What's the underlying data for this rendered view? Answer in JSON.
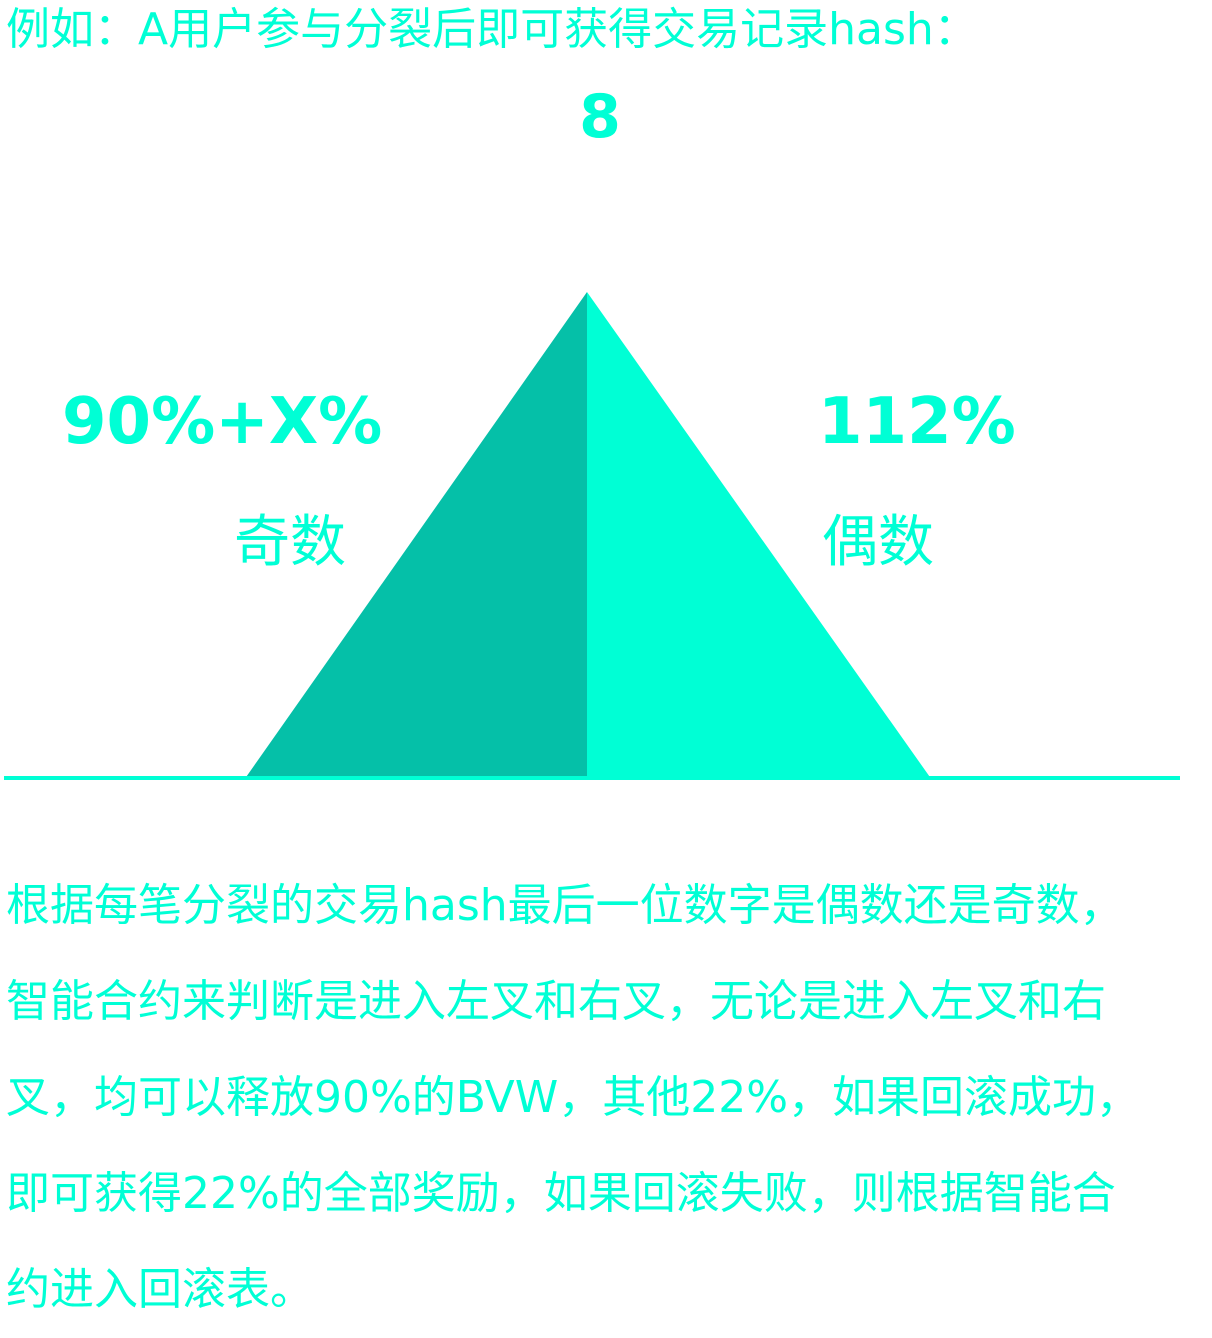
{
  "intro": "例如：A用户参与分裂后即可获得交易记录hash：",
  "hash_digit": "8",
  "odd": {
    "percent": "90%+X%",
    "label": "奇数"
  },
  "even": {
    "percent": "112%",
    "label": "偶数"
  },
  "colors": {
    "accent": "#00ffd5",
    "left_face": "#05c0a8",
    "right_face": "#00ffd5",
    "baseline": "#00ffd5"
  },
  "paragraph_lines": [
    "根据每笔分裂的交易hash最后一位数字是偶数还是奇数，",
    "智能合约来判断是进入左叉和右叉，无论是进入左叉和右",
    "叉，均可以释放90%的BVW，其他22%，如果回滚成功，",
    "即可获得22%的全部奖励，如果回滚失败，则根据智能合",
    "约进入回滚表。"
  ]
}
